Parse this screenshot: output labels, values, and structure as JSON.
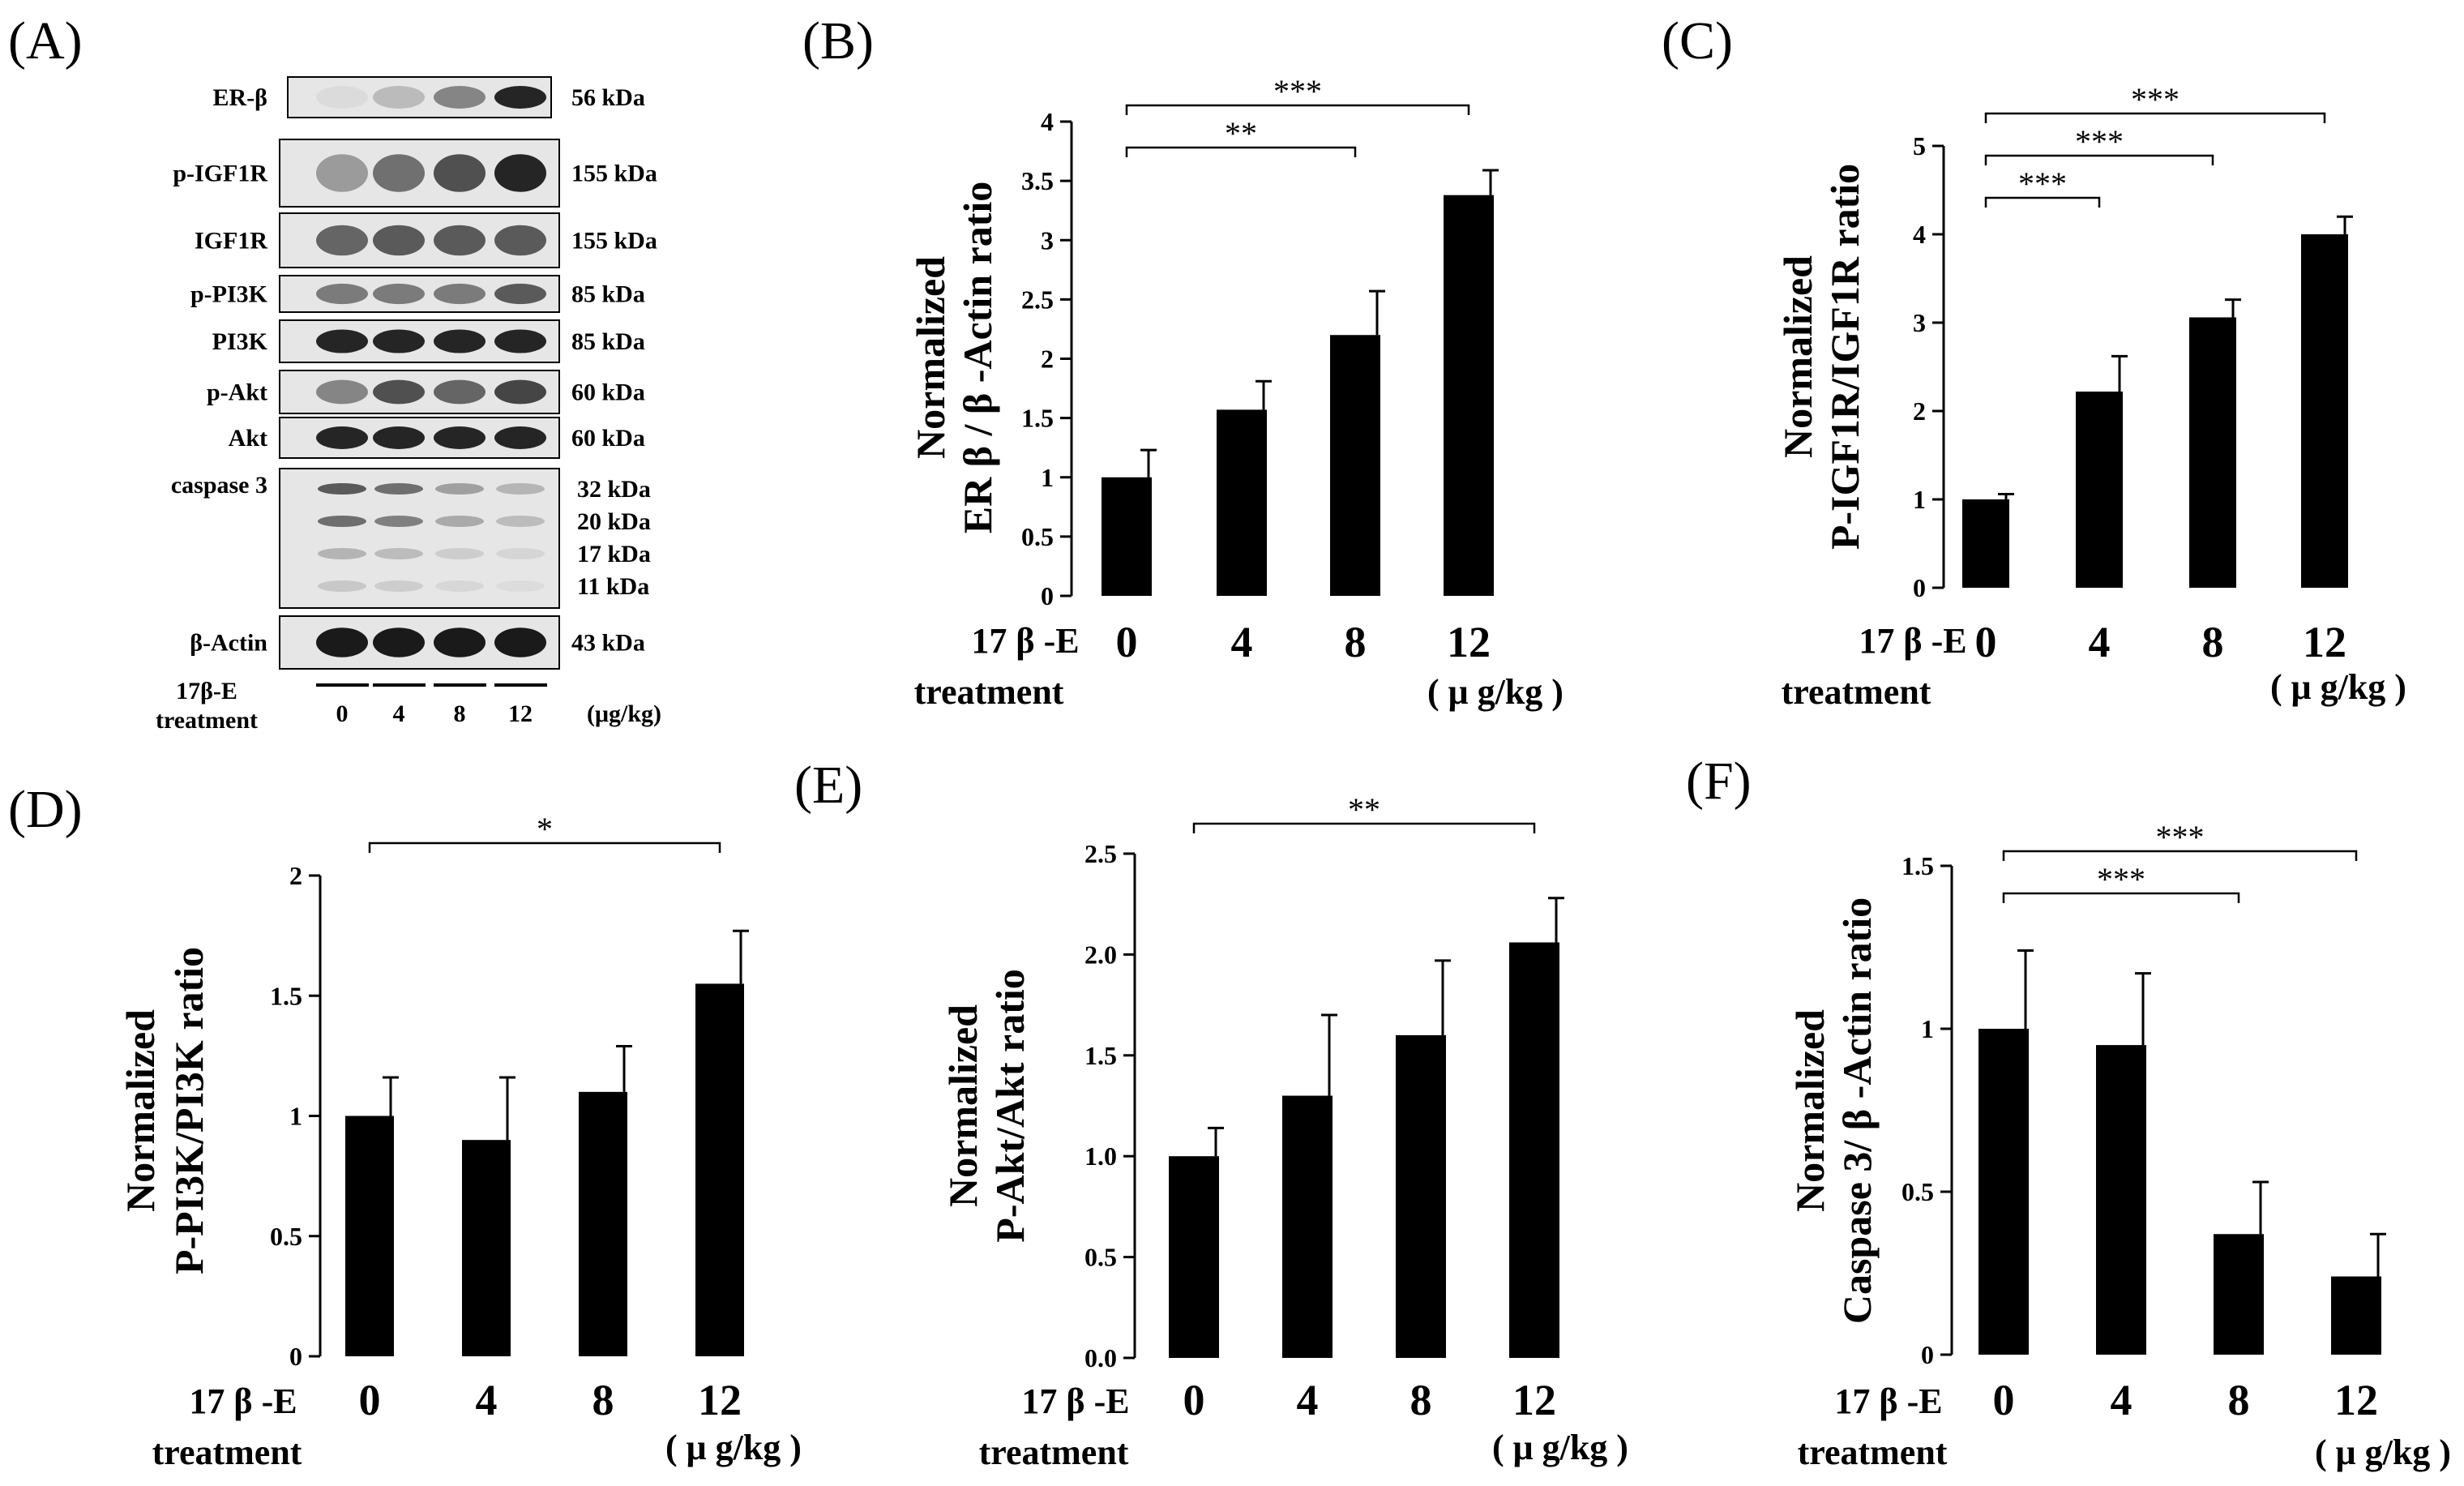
{
  "panel_letters": [
    "(A)",
    "(B)",
    "(C)",
    "(D)",
    "(E)",
    "(F)"
  ],
  "blot": {
    "rows": [
      {
        "protein": "ER-β",
        "kda": "56 kDa",
        "intensity": [
          0.05,
          0.2,
          0.45,
          0.9
        ]
      },
      {
        "protein": "p-IGF1R",
        "kda": "155 kDa",
        "intensity": [
          0.35,
          0.55,
          0.7,
          0.9
        ]
      },
      {
        "protein": "IGF1R",
        "kda": "155 kDa",
        "intensity": [
          0.6,
          0.65,
          0.65,
          0.65
        ]
      },
      {
        "protein": "p-PI3K",
        "kda": "85 kDa",
        "intensity": [
          0.5,
          0.5,
          0.5,
          0.65
        ]
      },
      {
        "protein": "PI3K",
        "kda": "85 kDa",
        "intensity": [
          0.9,
          0.9,
          0.9,
          0.9
        ]
      },
      {
        "protein": "p-Akt",
        "kda": "60 kDa",
        "intensity": [
          0.45,
          0.7,
          0.6,
          0.75
        ]
      },
      {
        "protein": "Akt",
        "kda": "60 kDa",
        "intensity": [
          0.9,
          0.9,
          0.9,
          0.9
        ]
      },
      {
        "protein": "caspase 3",
        "kda": [
          "32 kDa",
          "20 kDa",
          "17 kDa",
          "11 kDa"
        ],
        "intensity": [
          0.7,
          0.6,
          0.25,
          0.15
        ]
      },
      {
        "protein": "β-Actin",
        "kda": "43 kDa",
        "intensity": [
          0.95,
          0.95,
          0.95,
          0.95
        ]
      }
    ],
    "treatment_label": [
      "17β-E",
      "treatment"
    ],
    "doses": [
      "0",
      "4",
      "8",
      "12"
    ],
    "unit": "(μg/kg)"
  },
  "shared": {
    "x_title": "17 β -E",
    "x_title2": "treatment",
    "unit": "( μ g/kg )"
  },
  "chart_data": [
    {
      "panel": "(B)",
      "type": "bar",
      "categories": [
        "0",
        "4",
        "8",
        "12"
      ],
      "values": [
        1.0,
        1.57,
        2.2,
        3.38
      ],
      "errors": [
        0.23,
        0.24,
        0.37,
        0.21
      ],
      "ylim": [
        0,
        4
      ],
      "yticks": [
        "0",
        "0.5",
        "1",
        "1.5",
        "2",
        "2.5",
        "3",
        "3.5",
        "4"
      ],
      "ylabel": [
        "Normalized",
        "ER β / β -Actin ratio"
      ],
      "significance": [
        {
          "from": 0,
          "to": 2,
          "label": "**"
        },
        {
          "from": 0,
          "to": 3,
          "label": "***"
        }
      ]
    },
    {
      "panel": "(C)",
      "type": "bar",
      "categories": [
        "0",
        "4",
        "8",
        "12"
      ],
      "values": [
        1.0,
        2.22,
        3.06,
        4.0
      ],
      "errors": [
        0.06,
        0.4,
        0.2,
        0.2
      ],
      "ylim": [
        0,
        5
      ],
      "yticks": [
        "0",
        "1",
        "2",
        "3",
        "4",
        "5"
      ],
      "ylabel": [
        "Normalized",
        "P-IGF1R/IGF1R ratio"
      ],
      "significance": [
        {
          "from": 0,
          "to": 1,
          "label": "***"
        },
        {
          "from": 0,
          "to": 2,
          "label": "***"
        },
        {
          "from": 0,
          "to": 3,
          "label": "***"
        }
      ]
    },
    {
      "panel": "(D)",
      "type": "bar",
      "categories": [
        "0",
        "4",
        "8",
        "12"
      ],
      "values": [
        1.0,
        0.9,
        1.1,
        1.55
      ],
      "errors": [
        0.16,
        0.26,
        0.19,
        0.22
      ],
      "ylim": [
        0,
        2
      ],
      "yticks": [
        "0",
        "0.5",
        "1",
        "1.5",
        "2"
      ],
      "ylabel": [
        "Normalized",
        "P-PI3K/PI3K ratio"
      ],
      "significance": [
        {
          "from": 0,
          "to": 3,
          "label": "*"
        }
      ]
    },
    {
      "panel": "(E)",
      "type": "bar",
      "categories": [
        "0",
        "4",
        "8",
        "12"
      ],
      "values": [
        1.0,
        1.3,
        1.6,
        2.06
      ],
      "errors": [
        0.14,
        0.4,
        0.37,
        0.22
      ],
      "ylim": [
        0,
        2.5
      ],
      "yticks": [
        "0.0",
        "0.5",
        "1.0",
        "1.5",
        "2.0",
        "2.5"
      ],
      "ylabel": [
        "Normalized",
        "P-Akt/Akt ratio"
      ],
      "significance": [
        {
          "from": 0,
          "to": 3,
          "label": "**"
        }
      ]
    },
    {
      "panel": "(F)",
      "type": "bar",
      "categories": [
        "0",
        "4",
        "8",
        "12"
      ],
      "values": [
        1.0,
        0.95,
        0.37,
        0.24
      ],
      "errors": [
        0.24,
        0.22,
        0.16,
        0.13
      ],
      "ylim": [
        0,
        1.5
      ],
      "yticks": [
        "0",
        "0.5",
        "1",
        "1.5"
      ],
      "ylabel": [
        "Normalized",
        "Caspase 3/ β -Actin ratio"
      ],
      "significance": [
        {
          "from": 0,
          "to": 2,
          "label": "***"
        },
        {
          "from": 0,
          "to": 3,
          "label": "***"
        }
      ]
    }
  ]
}
